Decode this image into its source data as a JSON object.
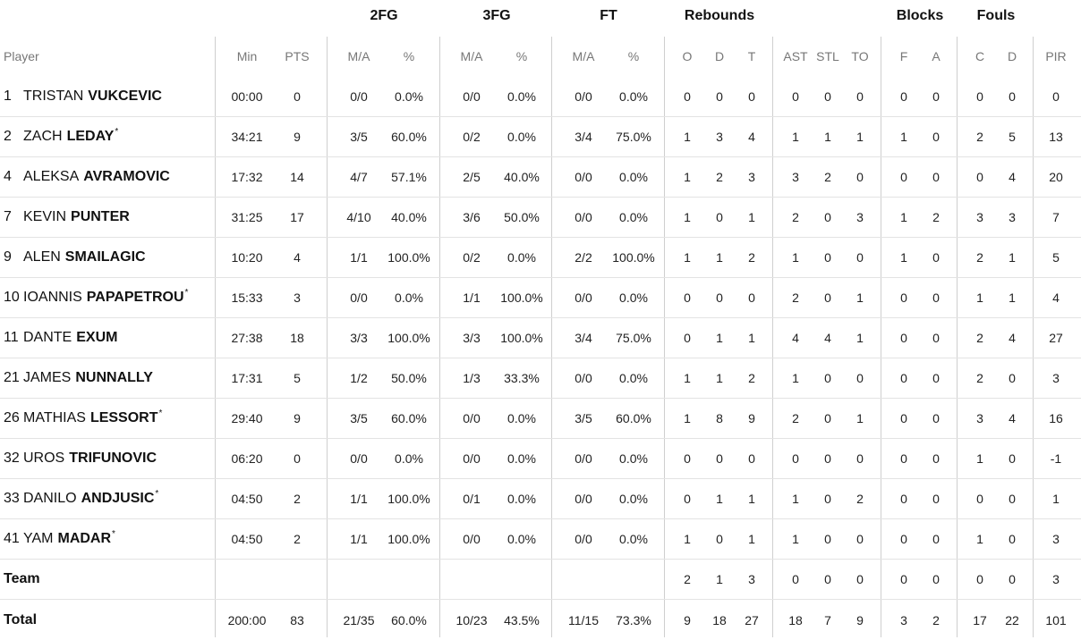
{
  "groups": [
    {
      "key": "2fg",
      "label": "2FG"
    },
    {
      "key": "3fg",
      "label": "3FG"
    },
    {
      "key": "ft",
      "label": "FT"
    },
    {
      "key": "reb",
      "label": "Rebounds"
    },
    {
      "key": "blk",
      "label": "Blocks"
    },
    {
      "key": "fls",
      "label": "Fouls"
    }
  ],
  "columns": [
    {
      "key": "player",
      "label": "Player"
    },
    {
      "key": "min",
      "label": "Min"
    },
    {
      "key": "pts",
      "label": "PTS"
    },
    {
      "key": "fg2ma",
      "label": "M/A"
    },
    {
      "key": "fg2pct",
      "label": "%"
    },
    {
      "key": "fg3ma",
      "label": "M/A"
    },
    {
      "key": "fg3pct",
      "label": "%"
    },
    {
      "key": "ftma",
      "label": "M/A"
    },
    {
      "key": "ftpct",
      "label": "%"
    },
    {
      "key": "ro",
      "label": "O"
    },
    {
      "key": "rd",
      "label": "D"
    },
    {
      "key": "rt",
      "label": "T"
    },
    {
      "key": "ast",
      "label": "AST"
    },
    {
      "key": "stl",
      "label": "STL"
    },
    {
      "key": "to",
      "label": "TO"
    },
    {
      "key": "bf",
      "label": "F"
    },
    {
      "key": "ba",
      "label": "A"
    },
    {
      "key": "fc",
      "label": "C"
    },
    {
      "key": "fd",
      "label": "D"
    },
    {
      "key": "pir",
      "label": "PIR"
    }
  ],
  "rows": [
    {
      "num": "1",
      "first": "TRISTAN",
      "last": "VUKCEVIC",
      "star": "",
      "values": [
        "00:00",
        "0",
        "0/0",
        "0.0%",
        "0/0",
        "0.0%",
        "0/0",
        "0.0%",
        "0",
        "0",
        "0",
        "0",
        "0",
        "0",
        "0",
        "0",
        "0",
        "0",
        "0"
      ]
    },
    {
      "num": "2",
      "first": "ZACH",
      "last": "LEDAY",
      "star": "*",
      "values": [
        "34:21",
        "9",
        "3/5",
        "60.0%",
        "0/2",
        "0.0%",
        "3/4",
        "75.0%",
        "1",
        "3",
        "4",
        "1",
        "1",
        "1",
        "1",
        "0",
        "2",
        "5",
        "13"
      ]
    },
    {
      "num": "4",
      "first": "ALEKSA",
      "last": "AVRAMOVIC",
      "star": "",
      "values": [
        "17:32",
        "14",
        "4/7",
        "57.1%",
        "2/5",
        "40.0%",
        "0/0",
        "0.0%",
        "1",
        "2",
        "3",
        "3",
        "2",
        "0",
        "0",
        "0",
        "0",
        "4",
        "20"
      ]
    },
    {
      "num": "7",
      "first": "KEVIN",
      "last": "PUNTER",
      "star": "",
      "values": [
        "31:25",
        "17",
        "4/10",
        "40.0%",
        "3/6",
        "50.0%",
        "0/0",
        "0.0%",
        "1",
        "0",
        "1",
        "2",
        "0",
        "3",
        "1",
        "2",
        "3",
        "3",
        "7"
      ]
    },
    {
      "num": "9",
      "first": "ALEN",
      "last": "SMAILAGIC",
      "star": "",
      "values": [
        "10:20",
        "4",
        "1/1",
        "100.0%",
        "0/2",
        "0.0%",
        "2/2",
        "100.0%",
        "1",
        "1",
        "2",
        "1",
        "0",
        "0",
        "1",
        "0",
        "2",
        "1",
        "5"
      ]
    },
    {
      "num": "10",
      "first": "IOANNIS",
      "last": "PAPAPETROU",
      "star": "*",
      "values": [
        "15:33",
        "3",
        "0/0",
        "0.0%",
        "1/1",
        "100.0%",
        "0/0",
        "0.0%",
        "0",
        "0",
        "0",
        "2",
        "0",
        "1",
        "0",
        "0",
        "1",
        "1",
        "4"
      ]
    },
    {
      "num": "11",
      "first": "DANTE",
      "last": "EXUM",
      "star": "",
      "values": [
        "27:38",
        "18",
        "3/3",
        "100.0%",
        "3/3",
        "100.0%",
        "3/4",
        "75.0%",
        "0",
        "1",
        "1",
        "4",
        "4",
        "1",
        "0",
        "0",
        "2",
        "4",
        "27"
      ]
    },
    {
      "num": "21",
      "first": "JAMES",
      "last": "NUNNALLY",
      "star": "",
      "values": [
        "17:31",
        "5",
        "1/2",
        "50.0%",
        "1/3",
        "33.3%",
        "0/0",
        "0.0%",
        "1",
        "1",
        "2",
        "1",
        "0",
        "0",
        "0",
        "0",
        "2",
        "0",
        "3"
      ]
    },
    {
      "num": "26",
      "first": "MATHIAS",
      "last": "LESSORT",
      "star": "*",
      "values": [
        "29:40",
        "9",
        "3/5",
        "60.0%",
        "0/0",
        "0.0%",
        "3/5",
        "60.0%",
        "1",
        "8",
        "9",
        "2",
        "0",
        "1",
        "0",
        "0",
        "3",
        "4",
        "16"
      ]
    },
    {
      "num": "32",
      "first": "UROS",
      "last": "TRIFUNOVIC",
      "star": "",
      "values": [
        "06:20",
        "0",
        "0/0",
        "0.0%",
        "0/0",
        "0.0%",
        "0/0",
        "0.0%",
        "0",
        "0",
        "0",
        "0",
        "0",
        "0",
        "0",
        "0",
        "1",
        "0",
        "-1"
      ]
    },
    {
      "num": "33",
      "first": "DANILO",
      "last": "ANDJUSIC",
      "star": "*",
      "values": [
        "04:50",
        "2",
        "1/1",
        "100.0%",
        "0/1",
        "0.0%",
        "0/0",
        "0.0%",
        "0",
        "1",
        "1",
        "1",
        "0",
        "2",
        "0",
        "0",
        "0",
        "0",
        "1"
      ]
    },
    {
      "num": "41",
      "first": "YAM",
      "last": "MADAR",
      "star": "*",
      "values": [
        "04:50",
        "2",
        "1/1",
        "100.0%",
        "0/0",
        "0.0%",
        "0/0",
        "0.0%",
        "1",
        "0",
        "1",
        "1",
        "0",
        "0",
        "0",
        "0",
        "1",
        "0",
        "3"
      ]
    }
  ],
  "team_row": {
    "label": "Team",
    "values": [
      "",
      "",
      "",
      "",
      "",
      "",
      "",
      "",
      "2",
      "1",
      "3",
      "0",
      "0",
      "0",
      "0",
      "0",
      "0",
      "0",
      "3"
    ]
  },
  "total_row": {
    "label": "Total",
    "values": [
      "200:00",
      "83",
      "21/35",
      "60.0%",
      "10/23",
      "43.5%",
      "11/15",
      "73.3%",
      "9",
      "18",
      "27",
      "18",
      "7",
      "9",
      "3",
      "2",
      "17",
      "22",
      "101"
    ]
  }
}
